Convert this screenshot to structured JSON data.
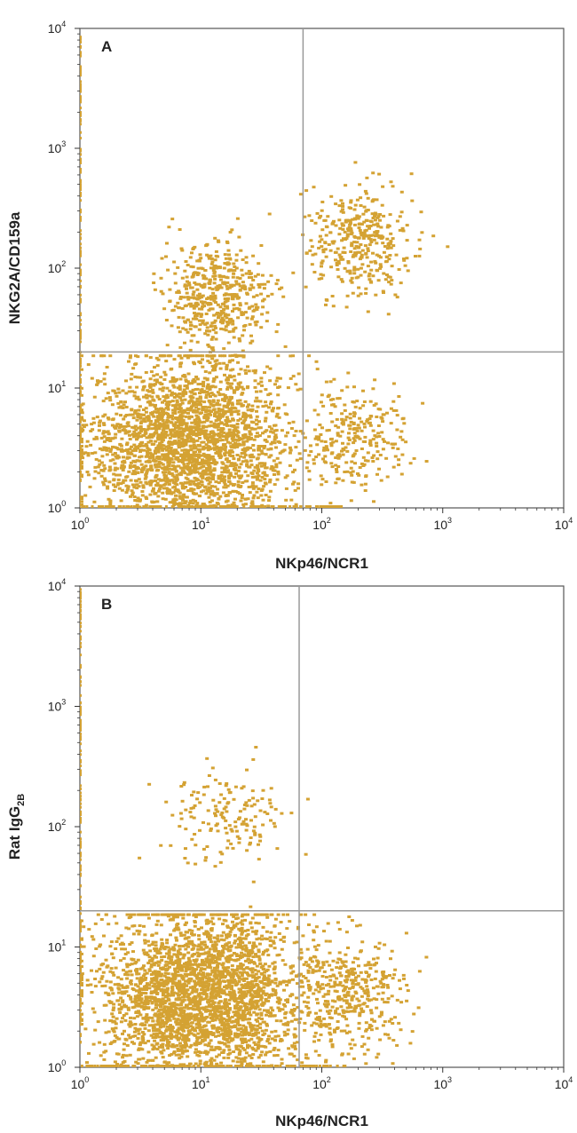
{
  "chart_data": [
    {
      "type": "scatter",
      "panel_label": "A",
      "xlabel": "NKp46/NCR1",
      "ylabel": "NKG2A/CD159a",
      "x_scale": "log",
      "y_scale": "log",
      "xlim": [
        1,
        10000
      ],
      "ylim": [
        1,
        10000
      ],
      "x_ticks": [
        "10^0",
        "10^1",
        "10^2",
        "10^3",
        "10^4"
      ],
      "y_ticks": [
        "10^0",
        "10^1",
        "10^2",
        "10^3",
        "10^4"
      ],
      "quadrant_gate": {
        "x": 70,
        "y": 20
      },
      "grid": false,
      "point_color": "#d4a233",
      "populations": [
        {
          "name_hint": "double-negative",
          "x_center": 8,
          "y_center": 3.5,
          "count": 2600
        },
        {
          "name_hint": "NKG2A-positive NKp46-negative",
          "x_center": 13,
          "y_center": 60,
          "count": 520
        },
        {
          "name_hint": "double-positive",
          "x_center": 200,
          "y_center": 170,
          "count": 380
        },
        {
          "name_hint": "NKp46-positive NKG2A-negative",
          "x_center": 180,
          "y_center": 4,
          "count": 260
        }
      ]
    },
    {
      "type": "scatter",
      "panel_label": "B",
      "xlabel": "NKp46/NCR1",
      "ylabel": "Rat IgG2B",
      "ylabel_main": "Rat IgG",
      "ylabel_sub": "2B",
      "x_scale": "log",
      "y_scale": "log",
      "xlim": [
        1,
        10000
      ],
      "ylim": [
        1,
        10000
      ],
      "x_ticks": [
        "10^0",
        "10^1",
        "10^2",
        "10^3",
        "10^4"
      ],
      "y_ticks": [
        "10^0",
        "10^1",
        "10^2",
        "10^3",
        "10^4"
      ],
      "quadrant_gate": {
        "x": 65,
        "y": 20
      },
      "grid": false,
      "point_color": "#d4a233",
      "populations": [
        {
          "name_hint": "main population",
          "x_center": 10,
          "y_center": 4,
          "count": 3000
        },
        {
          "name_hint": "NKp46-positive",
          "x_center": 170,
          "y_center": 4,
          "count": 380
        },
        {
          "name_hint": "sparse upper events",
          "x_center": 15,
          "y_center": 120,
          "count": 160
        }
      ]
    }
  ]
}
